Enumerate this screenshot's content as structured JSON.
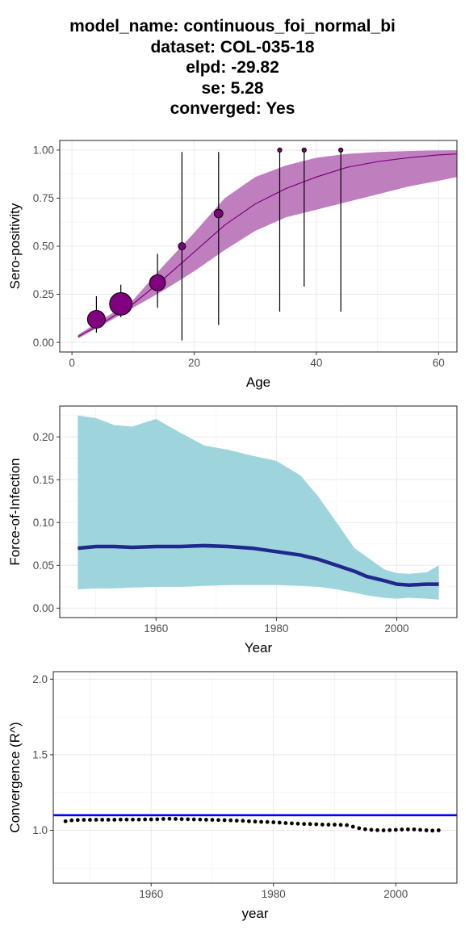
{
  "title": {
    "lines": [
      "model_name: continuous_foi_normal_bi",
      "dataset: COL-035-18",
      "elpd: -29.82",
      "se: 5.28",
      "converged: Yes"
    ]
  },
  "colors": {
    "sero_ribbon": "#bf7fbf",
    "sero_line": "#800080",
    "sero_point": "#800080",
    "foi_ribbon": "#9ed5dd",
    "foi_line": "#21288c",
    "rhat_line": "#0000ff",
    "rhat_point": "#000000"
  },
  "chart_data": [
    {
      "type": "line",
      "xlabel": "Age",
      "ylabel": "Sero-positivity",
      "xlim": [
        -2,
        63
      ],
      "ylim": [
        -0.05,
        1.05
      ],
      "x_ticks": [
        0,
        20,
        40,
        60
      ],
      "x_tick_labels": [
        "0",
        "20",
        "40",
        "60"
      ],
      "y_ticks": [
        0,
        0.25,
        0.5,
        0.75,
        1
      ],
      "y_tick_labels": [
        "0.00",
        "0.25",
        "0.50",
        "0.75",
        "1.00"
      ],
      "grid": true,
      "fit": {
        "age": [
          1,
          5,
          10,
          15,
          20,
          25,
          30,
          35,
          40,
          45,
          50,
          55,
          60,
          63
        ],
        "median": [
          0.03,
          0.1,
          0.2,
          0.33,
          0.47,
          0.61,
          0.72,
          0.8,
          0.86,
          0.91,
          0.94,
          0.96,
          0.975,
          0.98
        ],
        "lower": [
          0.02,
          0.09,
          0.18,
          0.27,
          0.37,
          0.48,
          0.58,
          0.65,
          0.69,
          0.73,
          0.77,
          0.81,
          0.84,
          0.86
        ],
        "upper": [
          0.04,
          0.12,
          0.22,
          0.4,
          0.57,
          0.75,
          0.86,
          0.92,
          0.96,
          0.98,
          0.99,
          0.995,
          0.998,
          0.999
        ]
      },
      "observations": {
        "age": [
          4,
          8,
          14,
          18,
          24,
          34,
          38,
          44
        ],
        "proportion": [
          0.12,
          0.2,
          0.31,
          0.5,
          0.67,
          1.0,
          1.0,
          1.0
        ],
        "lower": [
          0.05,
          0.13,
          0.18,
          0.01,
          0.09,
          0.16,
          0.29,
          0.16
        ],
        "upper": [
          0.24,
          0.3,
          0.46,
          0.99,
          0.99,
          1.0,
          1.0,
          1.0
        ],
        "sample_size": [
          20,
          35,
          15,
          2,
          3,
          1,
          1,
          1
        ]
      }
    },
    {
      "type": "area",
      "xlabel": "Year",
      "ylabel": "Force-of-Infection",
      "xlim": [
        1944,
        2010
      ],
      "ylim": [
        -0.011,
        0.236
      ],
      "x_ticks": [
        1960,
        1980,
        2000
      ],
      "x_tick_labels": [
        "1960",
        "1980",
        "2000"
      ],
      "y_ticks": [
        0,
        0.05,
        0.1,
        0.15,
        0.2
      ],
      "y_tick_labels": [
        "0.00",
        "0.05",
        "0.10",
        "0.15",
        "0.20"
      ],
      "grid": true,
      "year": [
        1947,
        1950,
        1953,
        1956,
        1960,
        1964,
        1968,
        1972,
        1976,
        1980,
        1984,
        1987,
        1990,
        1993,
        1995,
        1998,
        2000,
        2002,
        2005,
        2007
      ],
      "median": [
        0.07,
        0.072,
        0.072,
        0.071,
        0.072,
        0.072,
        0.073,
        0.072,
        0.07,
        0.066,
        0.062,
        0.057,
        0.05,
        0.043,
        0.037,
        0.032,
        0.028,
        0.027,
        0.028,
        0.028
      ],
      "lower": [
        0.022,
        0.023,
        0.023,
        0.024,
        0.025,
        0.025,
        0.026,
        0.027,
        0.027,
        0.027,
        0.026,
        0.025,
        0.022,
        0.018,
        0.015,
        0.012,
        0.011,
        0.012,
        0.011,
        0.01
      ],
      "upper": [
        0.225,
        0.222,
        0.214,
        0.212,
        0.221,
        0.205,
        0.19,
        0.185,
        0.178,
        0.172,
        0.155,
        0.13,
        0.1,
        0.07,
        0.06,
        0.045,
        0.041,
        0.04,
        0.042,
        0.05
      ]
    },
    {
      "type": "scatter",
      "xlabel": "year",
      "ylabel": "Convergence (R^)",
      "xlim": [
        1944,
        2010
      ],
      "ylim": [
        0.65,
        2.05
      ],
      "x_ticks": [
        1960,
        1980,
        2000
      ],
      "x_tick_labels": [
        "1960",
        "1980",
        "2000"
      ],
      "y_ticks": [
        1.0,
        1.5,
        2.0
      ],
      "y_tick_labels": [
        "1.0",
        "1.5",
        "2.0"
      ],
      "grid": true,
      "hline": 1.1,
      "year": [
        1946,
        1947,
        1948,
        1949,
        1950,
        1951,
        1952,
        1953,
        1954,
        1955,
        1956,
        1957,
        1958,
        1959,
        1960,
        1961,
        1962,
        1963,
        1964,
        1965,
        1966,
        1967,
        1968,
        1969,
        1970,
        1971,
        1972,
        1973,
        1974,
        1975,
        1976,
        1977,
        1978,
        1979,
        1980,
        1981,
        1982,
        1983,
        1984,
        1985,
        1986,
        1987,
        1988,
        1989,
        1990,
        1991,
        1992,
        1993,
        1994,
        1995,
        1996,
        1997,
        1998,
        1999,
        2000,
        2001,
        2002,
        2003,
        2004,
        2005,
        2006,
        2007
      ],
      "rhat": [
        1.06,
        1.066,
        1.068,
        1.069,
        1.069,
        1.07,
        1.07,
        1.07,
        1.07,
        1.071,
        1.071,
        1.071,
        1.071,
        1.072,
        1.072,
        1.073,
        1.075,
        1.076,
        1.075,
        1.074,
        1.073,
        1.072,
        1.071,
        1.07,
        1.069,
        1.068,
        1.067,
        1.066,
        1.064,
        1.063,
        1.06,
        1.058,
        1.056,
        1.055,
        1.053,
        1.051,
        1.048,
        1.046,
        1.044,
        1.042,
        1.041,
        1.04,
        1.038,
        1.037,
        1.037,
        1.036,
        1.034,
        1.024,
        1.014,
        1.007,
        1.003,
        1.001,
        1.0,
        1.001,
        1.003,
        1.005,
        1.006,
        1.006,
        1.003,
        1.0,
        0.998,
        1.0
      ]
    }
  ]
}
